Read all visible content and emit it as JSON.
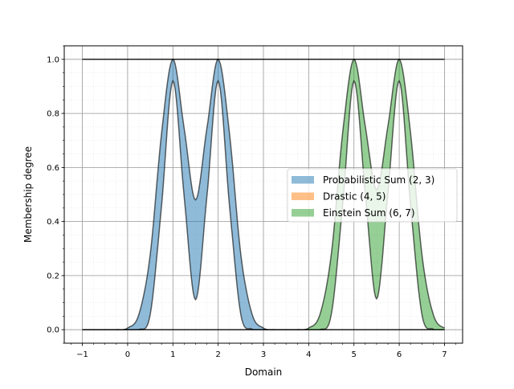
{
  "chart_data": {
    "type": "area",
    "title": "",
    "xlabel": "Domain",
    "ylabel": "Membership degree",
    "xlim": [
      -1.4,
      7.4
    ],
    "ylim": [
      -0.05,
      1.05
    ],
    "xticks": [
      "−1",
      "0",
      "1",
      "2",
      "3",
      "4",
      "5",
      "6",
      "7"
    ],
    "xtick_values": [
      -1,
      0,
      1,
      2,
      3,
      4,
      5,
      6,
      7
    ],
    "yticks": [
      "0.0",
      "0.2",
      "0.4",
      "0.6",
      "0.8",
      "1.0"
    ],
    "ytick_values": [
      0,
      0.2,
      0.4,
      0.6,
      0.8,
      1.0
    ],
    "grid": "major solid, minor dotted",
    "legend_placement": "center-right",
    "x": [
      -1,
      -0.75,
      -0.5,
      -0.25,
      0,
      0.25,
      0.5,
      0.75,
      1,
      1.25,
      1.5,
      1.75,
      2,
      2.25,
      2.5,
      2.75,
      3,
      3.25,
      3.5,
      3.75,
      4,
      4.25,
      4.5,
      4.75,
      5,
      5.25,
      5.5,
      5.75,
      6,
      6.25,
      6.5,
      6.75,
      7
    ],
    "series": [
      {
        "name": "Probabilistic Sum (2, 3)",
        "color": "#1f77b4",
        "upper": [
          0,
          0,
          0,
          0,
          0.006,
          0.057,
          0.279,
          0.727,
          1,
          0.743,
          0.48,
          0.743,
          1,
          0.727,
          0.279,
          0.057,
          0.006,
          0,
          0,
          0,
          0,
          0,
          0,
          0,
          0,
          0,
          0,
          0,
          0,
          0,
          0,
          0,
          0
        ],
        "lower": [
          0,
          0,
          0,
          0,
          0,
          0,
          0.057,
          0.46,
          0.92,
          0.49,
          0.111,
          0.49,
          0.92,
          0.46,
          0.057,
          0.002,
          0,
          0,
          0,
          0,
          0,
          0,
          0,
          0,
          0,
          0,
          0,
          0,
          0,
          0,
          0,
          0,
          0
        ]
      },
      {
        "name": "Drastic (4, 5)",
        "color": "#ff7f0e",
        "upper": [
          1,
          1,
          1,
          1,
          1,
          1,
          1,
          1,
          1,
          1,
          1,
          1,
          1,
          1,
          1,
          1,
          1,
          1,
          1,
          1,
          1,
          1,
          1,
          1,
          1,
          1,
          1,
          1,
          1,
          1,
          1,
          1,
          1
        ],
        "lower": [
          1,
          1,
          1,
          1,
          1,
          1,
          1,
          1,
          1,
          1,
          1,
          1,
          1,
          1,
          1,
          1,
          1,
          1,
          1,
          1,
          1,
          1,
          1,
          1,
          1,
          1,
          1,
          1,
          1,
          1,
          1,
          1,
          1
        ]
      },
      {
        "name": "Einstein Sum (6, 7)",
        "color": "#2ca02c",
        "upper": [
          0,
          0,
          0,
          0,
          0,
          0,
          0,
          0,
          0,
          0,
          0,
          0,
          0,
          0,
          0,
          0,
          0,
          0,
          0,
          0,
          0.006,
          0.057,
          0.279,
          0.727,
          1,
          0.753,
          0.518,
          0.753,
          1,
          0.727,
          0.279,
          0.057,
          0.006
        ],
        "lower": [
          0,
          0,
          0,
          0,
          0,
          0,
          0,
          0,
          0,
          0,
          0,
          0,
          0,
          0,
          0,
          0,
          0,
          0,
          0,
          0,
          0,
          0,
          0.057,
          0.46,
          0.92,
          0.504,
          0.114,
          0.504,
          0.92,
          0.46,
          0.057,
          0.002,
          0
        ]
      }
    ]
  }
}
